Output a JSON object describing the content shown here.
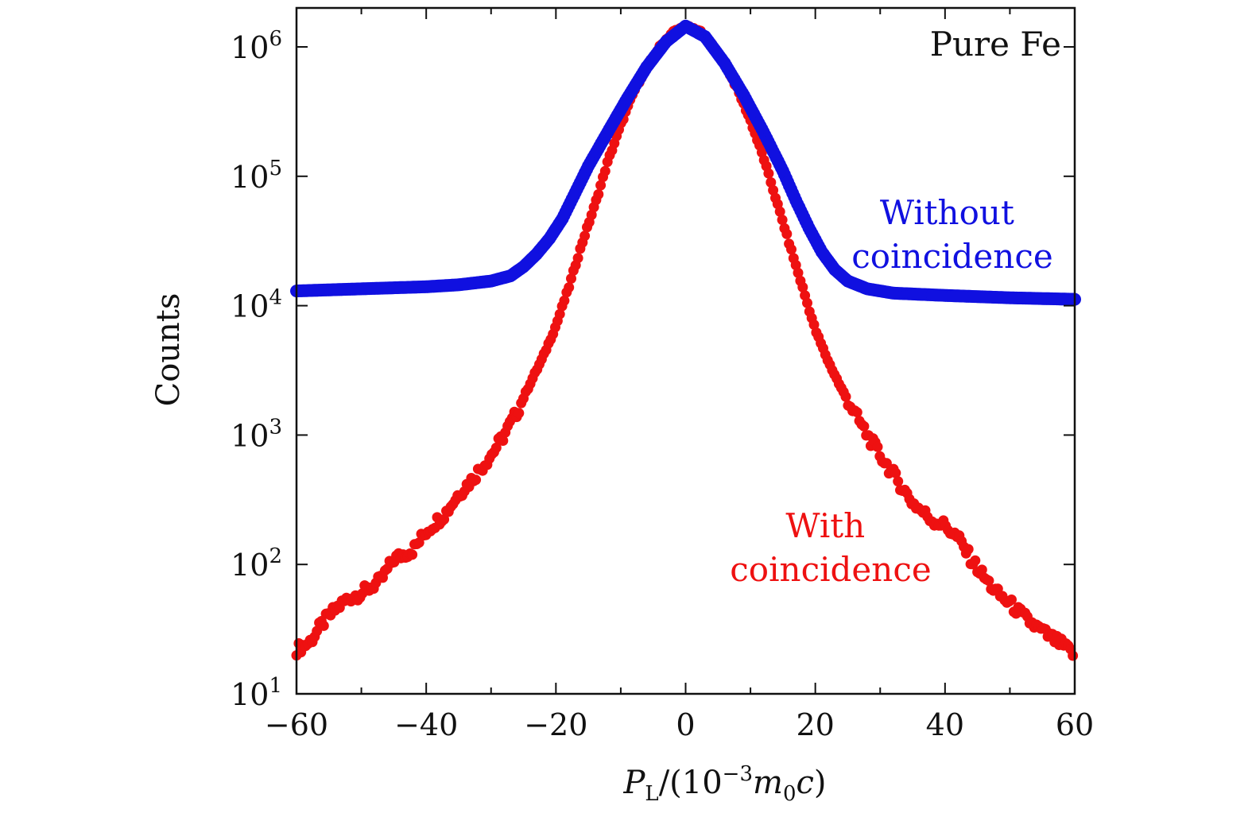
{
  "chart_data": {
    "type": "scatter",
    "title": "",
    "annotation": "Pure Fe",
    "xlabel": {
      "main": "P",
      "main_sub": "L",
      "open": "/(10",
      "exp": "−3",
      "m": "m",
      "m_sub": "0",
      "c": "c",
      "close": ")"
    },
    "ylabel": "Counts",
    "yscale": "log",
    "xlim": [
      -60,
      60
    ],
    "ylim": [
      10,
      2000000
    ],
    "x_ticks": [
      {
        "value": -60,
        "label": "−60"
      },
      {
        "value": -40,
        "label": "−40"
      },
      {
        "value": -20,
        "label": "−20"
      },
      {
        "value": 0,
        "label": "0"
      },
      {
        "value": 20,
        "label": "20"
      },
      {
        "value": 40,
        "label": "40"
      },
      {
        "value": 60,
        "label": "60"
      }
    ],
    "x_minor_ticks": [
      -50,
      -30,
      -10,
      10,
      30,
      50
    ],
    "y_ticks": [
      {
        "value": 10,
        "base": "10",
        "exp": "1"
      },
      {
        "value": 100,
        "base": "10",
        "exp": "2"
      },
      {
        "value": 1000,
        "base": "10",
        "exp": "3"
      },
      {
        "value": 10000,
        "base": "10",
        "exp": "4"
      },
      {
        "value": 100000,
        "base": "10",
        "exp": "5"
      },
      {
        "value": 1000000,
        "base": "10",
        "exp": "6"
      }
    ],
    "series": [
      {
        "name": "Without coincidence",
        "label_lines": [
          "Without",
          "coincidence"
        ],
        "color": "#1010e0",
        "points": [
          [
            -60,
            13000
          ],
          [
            -50,
            13500
          ],
          [
            -40,
            14000
          ],
          [
            -35,
            14500
          ],
          [
            -30,
            15500
          ],
          [
            -27,
            17000
          ],
          [
            -25,
            20000
          ],
          [
            -23,
            25000
          ],
          [
            -21,
            33000
          ],
          [
            -19,
            47000
          ],
          [
            -17,
            75000
          ],
          [
            -15,
            120000
          ],
          [
            -12,
            220000
          ],
          [
            -9,
            400000
          ],
          [
            -6,
            700000
          ],
          [
            -3,
            1100000
          ],
          [
            0,
            1450000
          ],
          [
            3,
            1200000
          ],
          [
            6,
            750000
          ],
          [
            9,
            420000
          ],
          [
            12,
            220000
          ],
          [
            15,
            110000
          ],
          [
            17,
            65000
          ],
          [
            19,
            40000
          ],
          [
            21,
            26000
          ],
          [
            23,
            19000
          ],
          [
            25,
            15500
          ],
          [
            28,
            13500
          ],
          [
            32,
            12500
          ],
          [
            40,
            12000
          ],
          [
            50,
            11500
          ],
          [
            60,
            11200
          ]
        ]
      },
      {
        "name": "With coincidence",
        "label_lines": [
          "With",
          "coincidence"
        ],
        "color": "#ee1111",
        "points": [
          [
            -60,
            22
          ],
          [
            -58,
            25
          ],
          [
            -56,
            35
          ],
          [
            -54,
            45
          ],
          [
            -52,
            55
          ],
          [
            -50,
            60
          ],
          [
            -47,
            75
          ],
          [
            -45,
            110
          ],
          [
            -42,
            130
          ],
          [
            -40,
            180
          ],
          [
            -37,
            250
          ],
          [
            -35,
            350
          ],
          [
            -33,
            450
          ],
          [
            -30,
            700
          ],
          [
            -28,
            1000
          ],
          [
            -26,
            1500
          ],
          [
            -24,
            2500
          ],
          [
            -22,
            4000
          ],
          [
            -20,
            7000
          ],
          [
            -18,
            14000
          ],
          [
            -16,
            30000
          ],
          [
            -14,
            60000
          ],
          [
            -12,
            130000
          ],
          [
            -10,
            250000
          ],
          [
            -8,
            450000
          ],
          [
            -6,
            700000
          ],
          [
            -4,
            1000000
          ],
          [
            -2,
            1300000
          ],
          [
            0,
            1450000
          ],
          [
            2,
            1350000
          ],
          [
            4,
            1050000
          ],
          [
            6,
            750000
          ],
          [
            8,
            470000
          ],
          [
            10,
            270000
          ],
          [
            12,
            140000
          ],
          [
            14,
            65000
          ],
          [
            16,
            30000
          ],
          [
            18,
            14000
          ],
          [
            20,
            6500
          ],
          [
            22,
            3700
          ],
          [
            24,
            2300
          ],
          [
            26,
            1500
          ],
          [
            28,
            1000
          ],
          [
            30,
            700
          ],
          [
            32,
            500
          ],
          [
            35,
            300
          ],
          [
            38,
            220
          ],
          [
            40,
            200
          ],
          [
            42,
            160
          ],
          [
            44,
            110
          ],
          [
            46,
            80
          ],
          [
            48,
            60
          ],
          [
            50,
            50
          ],
          [
            52,
            40
          ],
          [
            54,
            33
          ],
          [
            56,
            28
          ],
          [
            58,
            24
          ],
          [
            60,
            20
          ]
        ]
      }
    ],
    "annotations": [
      {
        "text": "Pure Fe",
        "position": "top-right"
      }
    ]
  }
}
